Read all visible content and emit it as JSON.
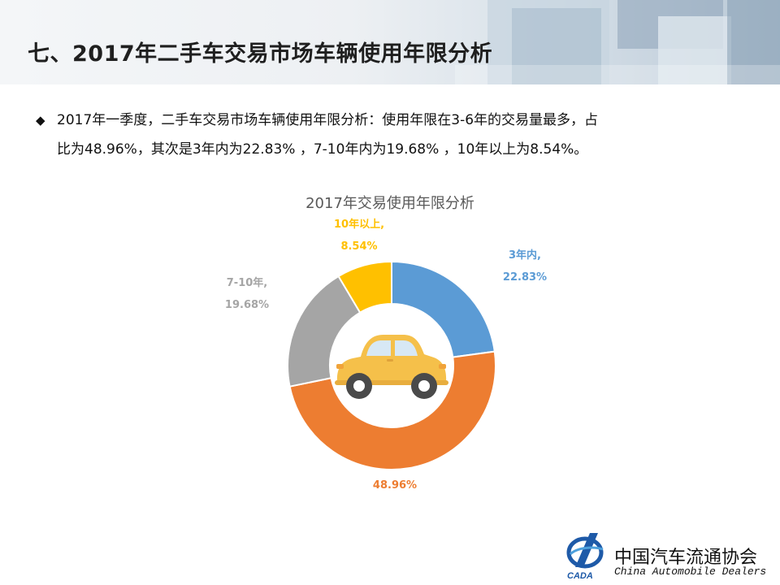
{
  "header": {
    "title": "七、2017年二手车交易市场车辆使用年限分析"
  },
  "summary": {
    "bullet_icon": "diamond-bullet",
    "line1": "2017年一季度，二手车交易市场车辆使用年限分析：使用年限在3-6年的交易量最多，占",
    "line2": "比为48.96%，其次是3年内为22.83%  ，7-10年内为19.68%  ，10年以上为8.54%。"
  },
  "chart_data": {
    "type": "pie",
    "variant": "donut",
    "title": "2017年交易使用年限分析",
    "slices": [
      {
        "name": "3年内",
        "value": 22.83,
        "label_name": "3年内,",
        "label_value": "22.83%",
        "color": "#5b9bd5"
      },
      {
        "name": "3-6年",
        "value": 48.96,
        "label_name": "",
        "label_value": "48.96%",
        "color": "#ed7d31"
      },
      {
        "name": "7-10年",
        "value": 19.68,
        "label_name": "7-10年,",
        "label_value": "19.68%",
        "color": "#a5a5a5"
      },
      {
        "name": "10年以上",
        "value": 8.54,
        "label_name": "10年以上,",
        "label_value": "8.54%",
        "color": "#ffc000"
      }
    ],
    "center_icon": "car-icon"
  },
  "logo": {
    "name_cn": "中国汽车流通协会",
    "name_en": "China  Automobile Dealers",
    "mark_text": "CADA"
  }
}
